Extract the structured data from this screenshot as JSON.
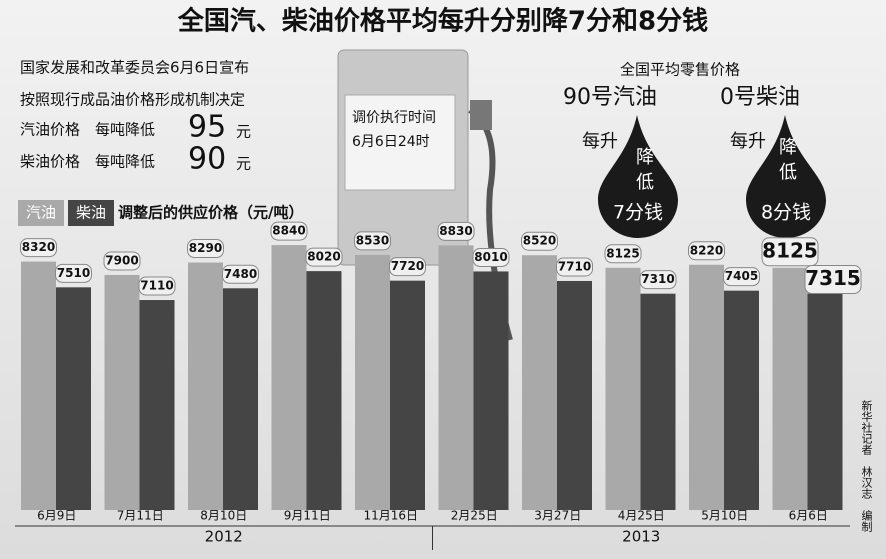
{
  "chart_data": {
    "type": "bar",
    "title": "全国汽、柴油价格平均每升分别降7分和8分钱",
    "notes": [
      "国家发展和改革委员会6月6日宣布",
      "按照现行成品油价格形成机制决定"
    ],
    "cuts": [
      {
        "label": "汽油价格　每吨降低",
        "amount": "95",
        "unit": "元"
      },
      {
        "label": "柴油价格　每吨降低",
        "amount": "90",
        "unit": "元"
      }
    ],
    "pump_text": [
      "调价执行时间",
      "6月6日24时"
    ],
    "retail_title": "全国平均零售价格",
    "drops": [
      {
        "fuel": "90号汽油",
        "per": "每升",
        "lines": [
          "降",
          "低",
          "7分钱"
        ]
      },
      {
        "fuel": "0号柴油",
        "per": "每升",
        "lines": [
          "降",
          "低",
          "8分钱"
        ]
      }
    ],
    "legend_title": "调整后的供应价格（元/吨）",
    "categories": [
      "6月9日",
      "7月11日",
      "8月10日",
      "9月11日",
      "11月16日",
      "2月25日",
      "3月27日",
      "4月25日",
      "5月10日",
      "6月6日"
    ],
    "years": [
      "2012",
      "2013"
    ],
    "series": [
      {
        "name": "汽油",
        "color": "#a9a9a9",
        "values": [
          8320,
          7900,
          8290,
          8840,
          8530,
          8830,
          8520,
          8125,
          8220,
          8125
        ]
      },
      {
        "name": "柴油",
        "color": "#454545",
        "values": [
          7510,
          7110,
          7480,
          8020,
          7720,
          8010,
          7710,
          7310,
          7405,
          7315
        ]
      }
    ],
    "ylim": [
      500,
      9000
    ],
    "highlight_last": true,
    "credit": "新华社记者　林汉志　编制"
  }
}
